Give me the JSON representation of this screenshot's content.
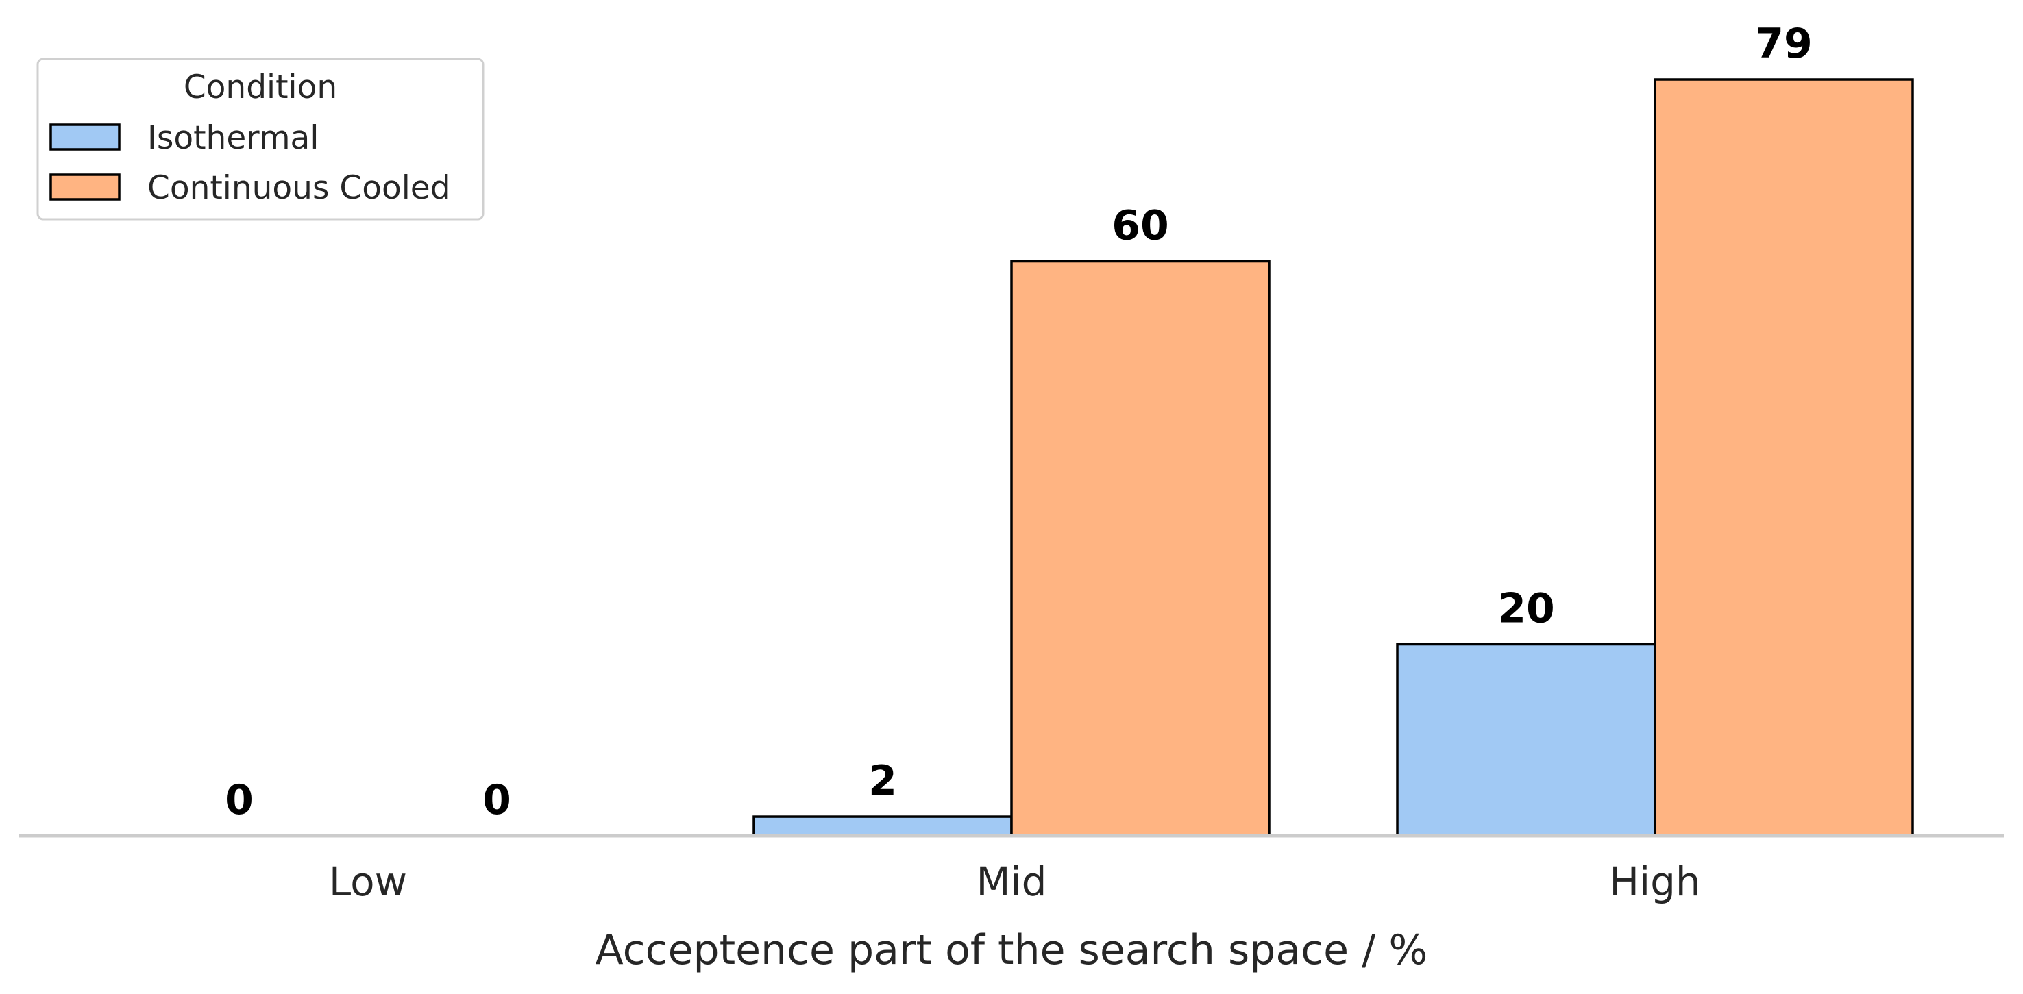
{
  "chart_data": {
    "type": "bar",
    "title": "",
    "xlabel": "Acceptence part of the search space / %",
    "ylabel": "",
    "categories": [
      "Low",
      "Mid",
      "High"
    ],
    "series": [
      {
        "name": "Isothermal",
        "values": [
          0,
          2,
          20
        ],
        "color": "#a1c9f4"
      },
      {
        "name": "Continuous Cooled",
        "values": [
          0,
          60,
          79
        ],
        "color": "#ffb482"
      }
    ],
    "ylim": [
      0,
      79
    ],
    "grid": false,
    "legend": {
      "title": "Condition",
      "position": "top-left"
    },
    "bar_edge_color": "#000000",
    "axis_color": "#cccccc"
  }
}
